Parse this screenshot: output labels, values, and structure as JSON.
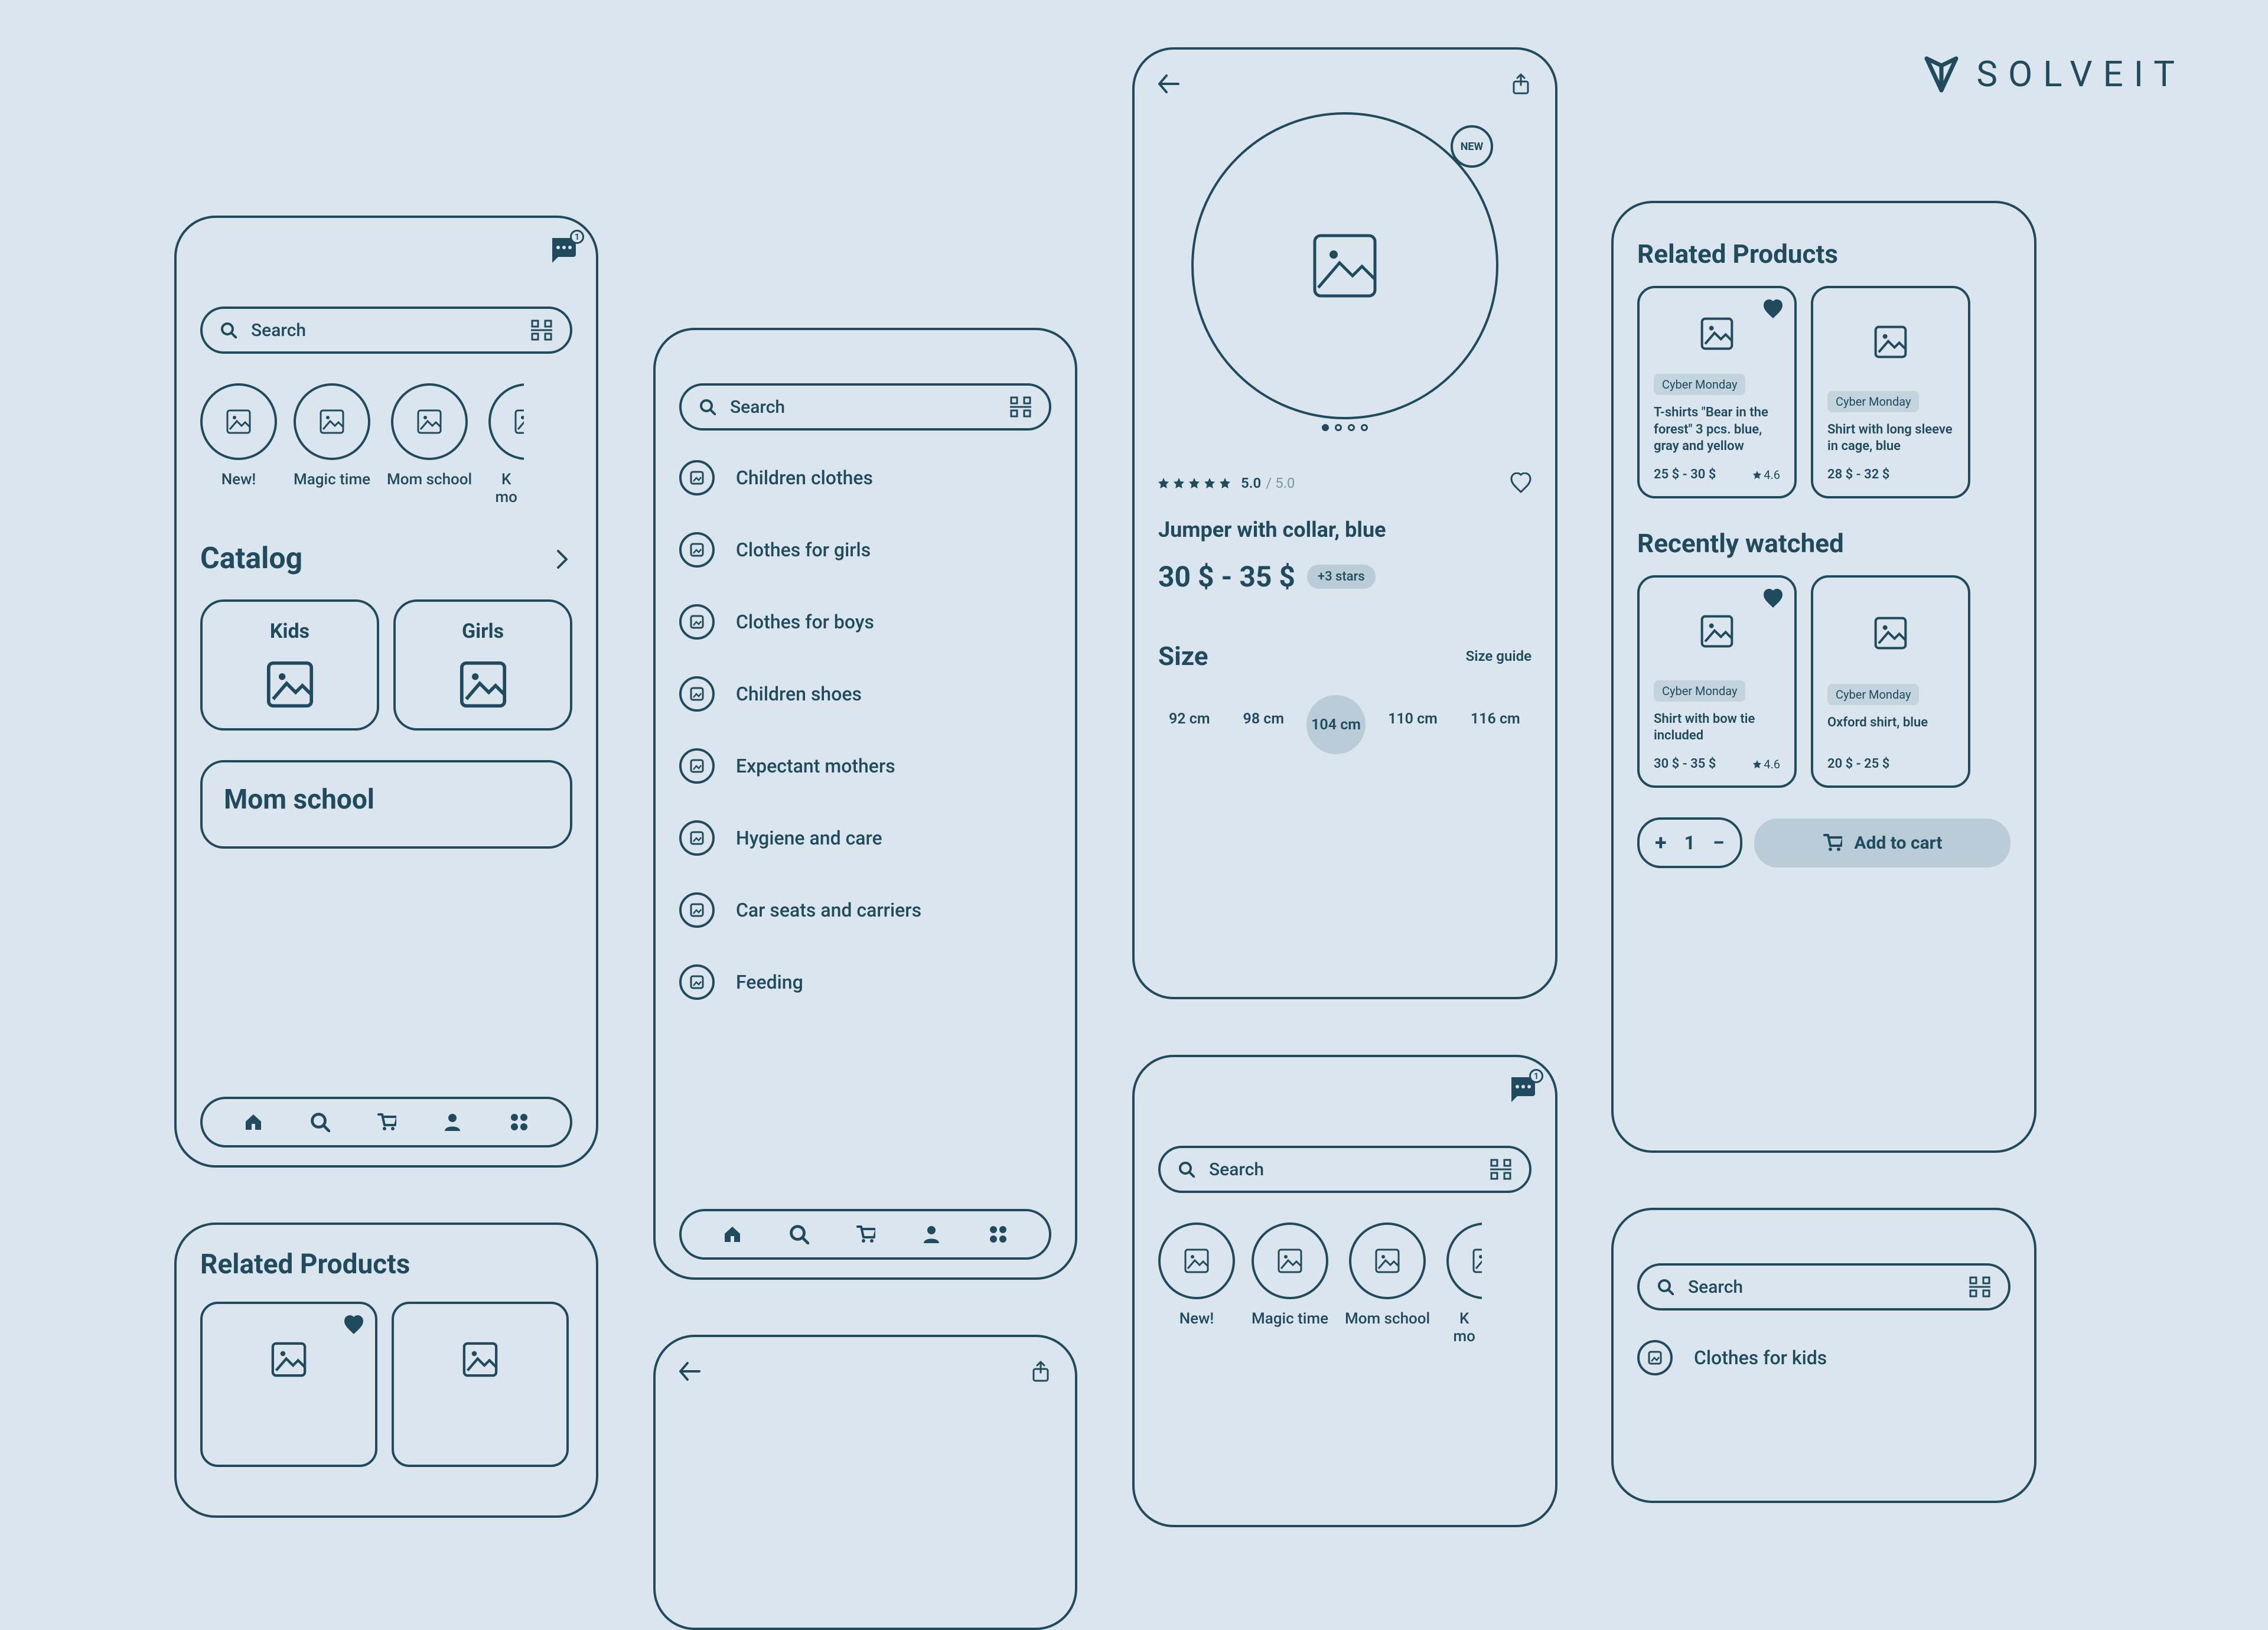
{
  "brand": "SOLVEIT",
  "colors": {
    "primary": "#204a5e",
    "bg": "#dbe5ed",
    "chip": "#b9ccd8",
    "tag": "#c4d4df"
  },
  "search_placeholder": "Search",
  "chat_badge": "1",
  "stories": [
    "New!",
    "Magic time",
    "Mom school",
    "K\nmo"
  ],
  "catalog_heading": "Catalog",
  "catalog_cards": [
    "Kids",
    "Girls"
  ],
  "mom_section": "Mom school",
  "related_heading": "Related Products",
  "recently_heading": "Recently watched",
  "categories": [
    "Children clothes",
    "Clothes for girls",
    "Clothes for boys",
    "Children shoes",
    "Expectant mothers",
    "Hygiene and care",
    "Car seats and carriers",
    "Feeding"
  ],
  "screen6_category": "Clothes for kids",
  "product": {
    "badge": "NEW",
    "rating": "5.0",
    "rating_max": "/ 5.0",
    "title": "Jumper with collar, blue",
    "price": "30 $ - 35 $",
    "stars_chip": "+3 stars",
    "size_label": "Size",
    "size_guide": "Size guide",
    "sizes": [
      "92 cm",
      "98 cm",
      "104 cm",
      "110 cm",
      "116 cm"
    ],
    "size_selected": "104 cm"
  },
  "related": [
    {
      "tag": "Cyber Monday",
      "title": "T-shirts \"Bear in the forest\" 3 pcs. blue, gray and yellow",
      "price": "25 $ - 30 $",
      "rating": "4.6",
      "fav": true
    },
    {
      "tag": "Cyber Monday",
      "title": "Shirt with long sleeve in cage, blue",
      "price": "28 $ - 32 $",
      "rating": "",
      "fav": false
    }
  ],
  "recent": [
    {
      "tag": "Cyber Monday",
      "title": "Shirt with bow tie included",
      "price": "30 $ - 35 $",
      "rating": "4.6",
      "fav": true
    },
    {
      "tag": "Cyber Monday",
      "title": "Oxford shirt, blue",
      "price": "20 $ - 25 $",
      "rating": "",
      "fav": false
    }
  ],
  "qty": "1",
  "add_cart": "Add to cart"
}
